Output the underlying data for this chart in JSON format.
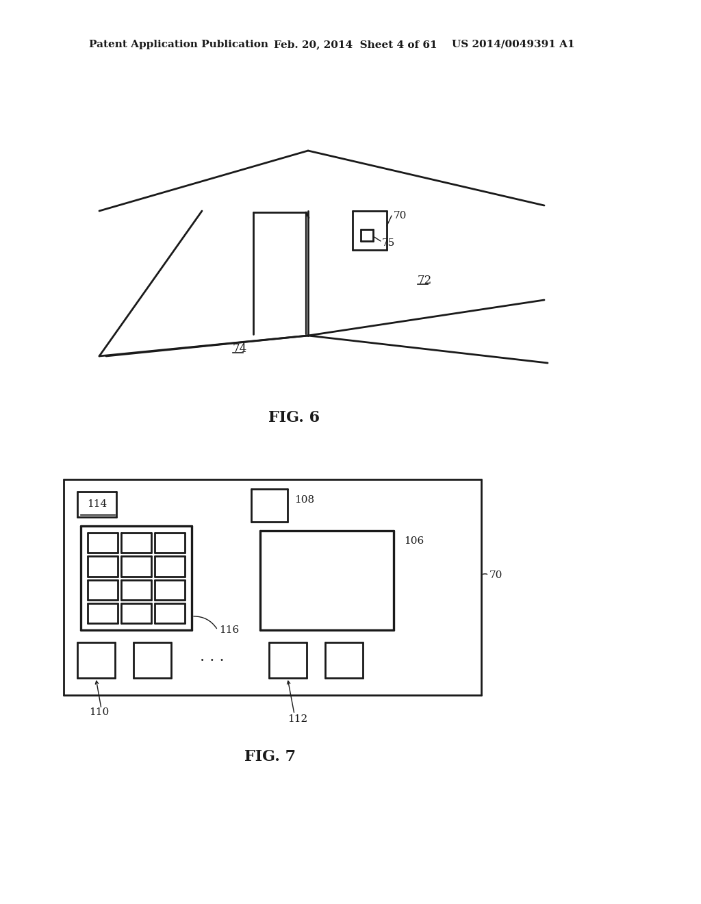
{
  "bg_color": "#ffffff",
  "line_color": "#1a1a1a",
  "line_width": 2.0,
  "header_text1": "Patent Application Publication",
  "header_text2": "Feb. 20, 2014  Sheet 4 of 61",
  "header_text3": "US 2014/0049391 A1",
  "fig6_label": "FIG. 6",
  "fig7_label": "FIG. 7",
  "label_70_fig6": "70",
  "label_75": "75",
  "label_72": "72",
  "label_74": "74",
  "label_114": "114",
  "label_108": "108",
  "label_106": "106",
  "label_70_fig7": "70",
  "label_116": "116",
  "label_110": "110",
  "label_112": "112"
}
